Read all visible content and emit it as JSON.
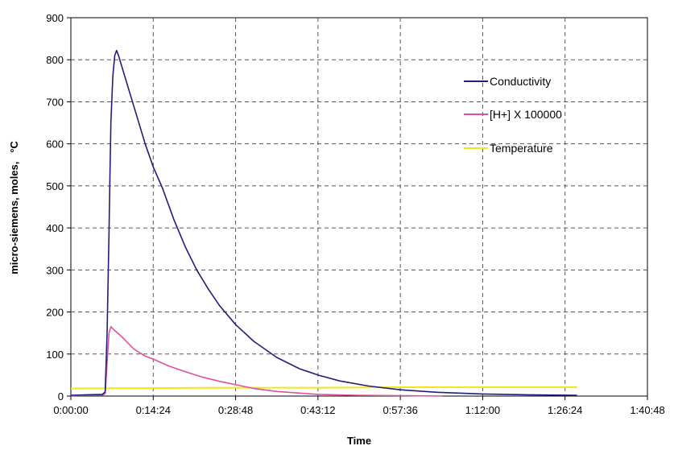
{
  "chart_data": {
    "type": "line",
    "title": "",
    "xlabel": "Time",
    "ylabel": "micro-siemens, moles,   °C",
    "xlim_seconds": [
      0,
      6048
    ],
    "ylim": [
      0,
      900
    ],
    "y_ticks": [
      0,
      100,
      200,
      300,
      400,
      500,
      600,
      700,
      800,
      900
    ],
    "x_ticks": [
      "0:00:00",
      "0:14:24",
      "0:28:48",
      "0:43:12",
      "0:57:36",
      "1:12:00",
      "1:26:24",
      "1:40:48"
    ],
    "grid": true,
    "legend_position": "top-right",
    "series": [
      {
        "name": "Conductivity",
        "color": "#1f1f7a",
        "points": [
          [
            "0:00:00",
            2
          ],
          [
            "0:03:00",
            3
          ],
          [
            "0:05:30",
            4
          ],
          [
            "0:06:00",
            10
          ],
          [
            "0:06:20",
            150
          ],
          [
            "0:06:40",
            390
          ],
          [
            "0:06:50",
            520
          ],
          [
            "0:07:00",
            650
          ],
          [
            "0:07:20",
            760
          ],
          [
            "0:07:40",
            810
          ],
          [
            "0:08:00",
            822
          ],
          [
            "0:08:20",
            810
          ],
          [
            "0:09:00",
            780
          ],
          [
            "0:10:00",
            735
          ],
          [
            "0:11:00",
            690
          ],
          [
            "0:12:00",
            645
          ],
          [
            "0:13:00",
            600
          ],
          [
            "0:14:24",
            545
          ],
          [
            "0:16:00",
            495
          ],
          [
            "0:18:00",
            420
          ],
          [
            "0:20:00",
            355
          ],
          [
            "0:22:00",
            300
          ],
          [
            "0:24:00",
            255
          ],
          [
            "0:26:00",
            215
          ],
          [
            "0:28:48",
            170
          ],
          [
            "0:32:00",
            130
          ],
          [
            "0:36:00",
            92
          ],
          [
            "0:40:00",
            65
          ],
          [
            "0:43:12",
            50
          ],
          [
            "0:47:00",
            36
          ],
          [
            "0:52:00",
            24
          ],
          [
            "0:57:36",
            15
          ],
          [
            "1:04:00",
            9
          ],
          [
            "1:12:00",
            5
          ],
          [
            "1:20:00",
            3
          ],
          [
            "1:28:30",
            2
          ]
        ]
      },
      {
        "name": "[H+] X 100000",
        "color": "#e0509a",
        "points": [
          [
            "0:00:00",
            1
          ],
          [
            "0:05:30",
            2
          ],
          [
            "0:06:00",
            6
          ],
          [
            "0:06:20",
            80
          ],
          [
            "0:06:40",
            150
          ],
          [
            "0:07:00",
            165
          ],
          [
            "0:07:30",
            158
          ],
          [
            "0:09:00",
            140
          ],
          [
            "0:11:00",
            112
          ],
          [
            "0:13:00",
            95
          ],
          [
            "0:14:24",
            88
          ],
          [
            "0:17:00",
            72
          ],
          [
            "0:20:00",
            58
          ],
          [
            "0:23:00",
            45
          ],
          [
            "0:26:00",
            35
          ],
          [
            "0:28:48",
            27
          ],
          [
            "0:32:00",
            18
          ],
          [
            "0:36:00",
            11
          ],
          [
            "0:40:00",
            7
          ],
          [
            "0:43:12",
            4
          ],
          [
            "0:50:00",
            2
          ],
          [
            "0:58:00",
            1
          ],
          [
            "1:05:00",
            0
          ]
        ]
      },
      {
        "name": "Temperature",
        "color": "#f0e81a",
        "points": [
          [
            "0:00:00",
            18
          ],
          [
            "0:14:24",
            19
          ],
          [
            "0:28:48",
            20
          ],
          [
            "0:43:12",
            20
          ],
          [
            "0:57:36",
            21
          ],
          [
            "1:12:00",
            21
          ],
          [
            "1:28:30",
            21
          ]
        ]
      }
    ]
  }
}
